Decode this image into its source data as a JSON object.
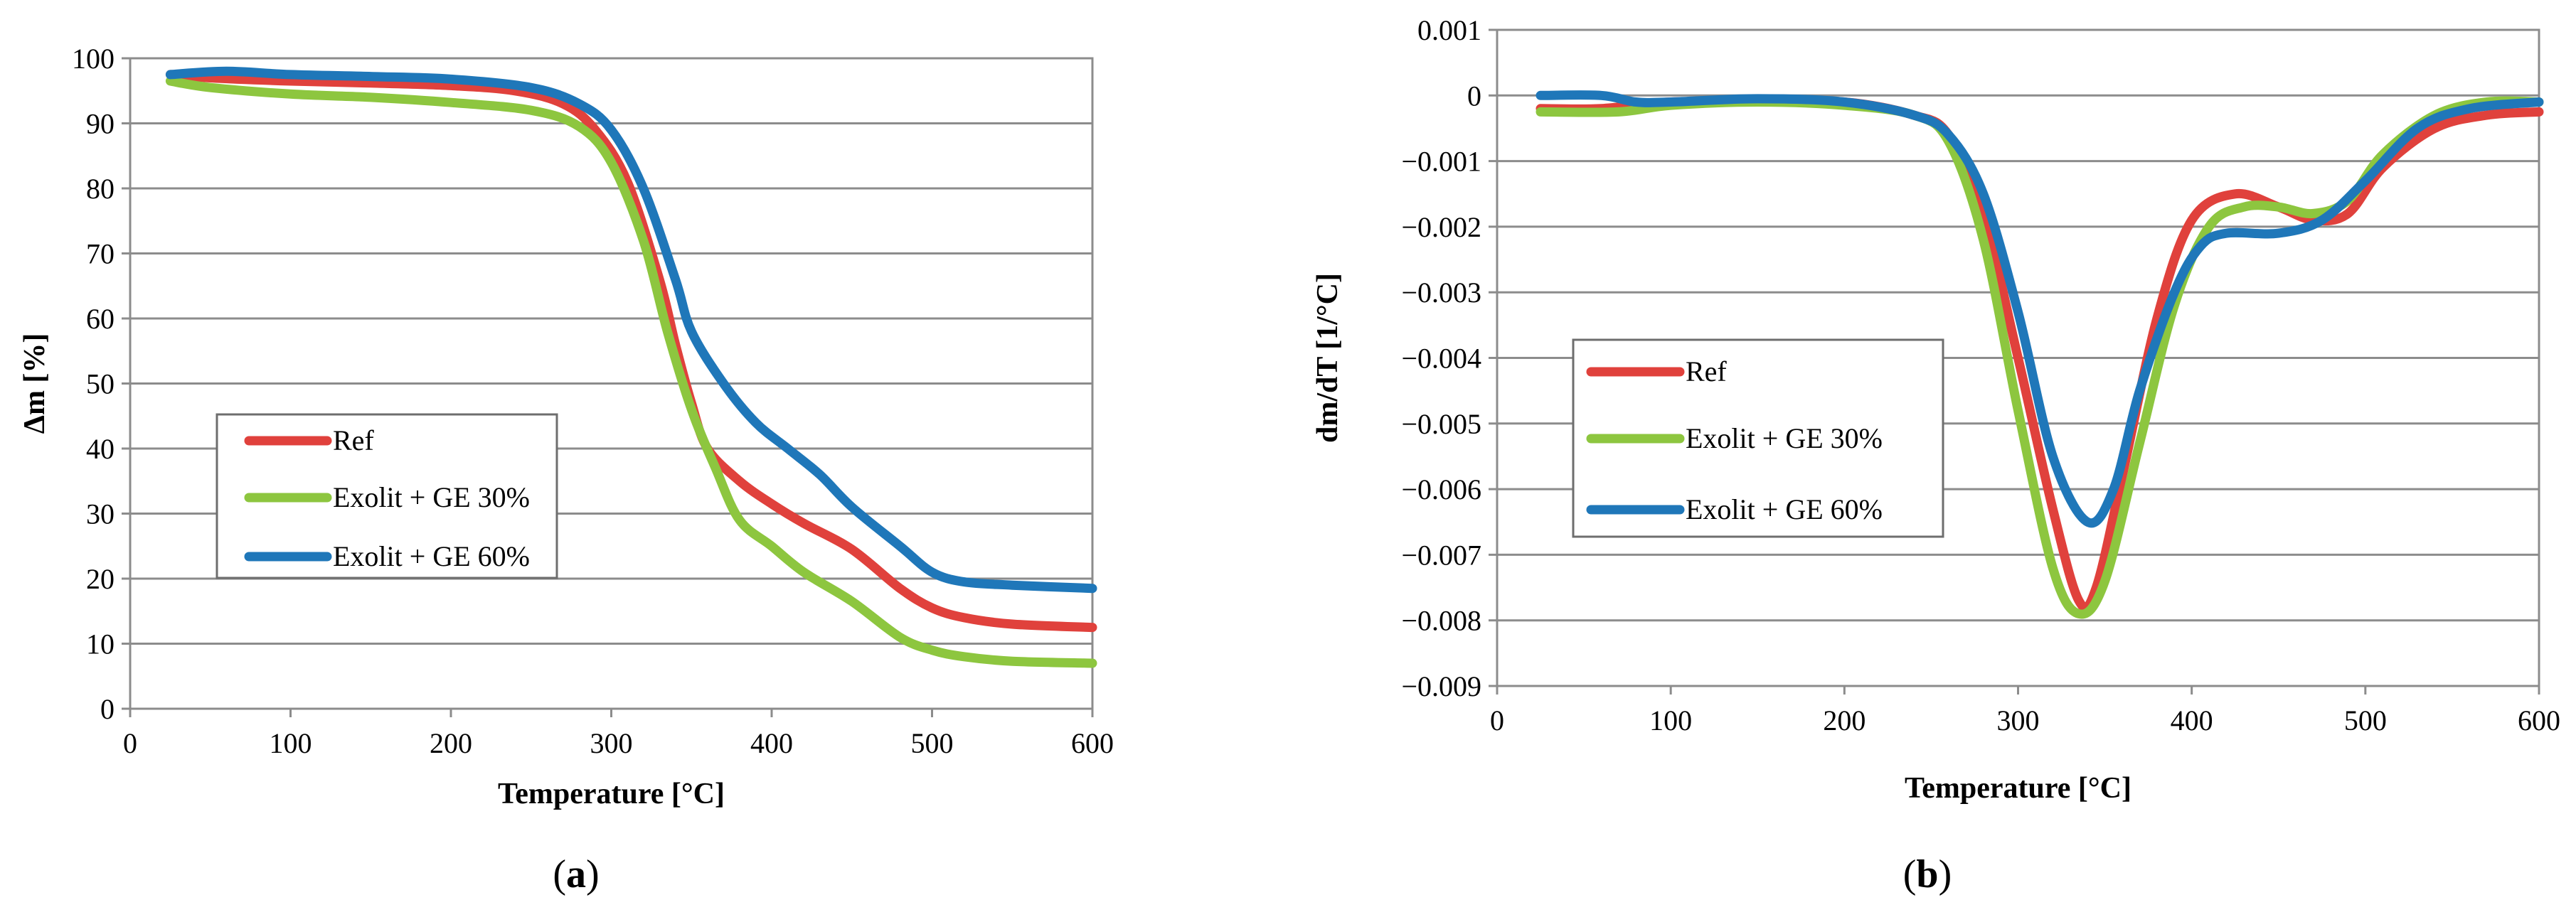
{
  "chart_data": [
    {
      "type": "line",
      "panel": "a",
      "caption": "(a)",
      "title": "",
      "xlabel": "Temperature [°C]",
      "ylabel": "Δm [%]",
      "xlim": [
        0,
        600
      ],
      "ylim": [
        0,
        100
      ],
      "x_ticks": [
        0,
        100,
        200,
        300,
        400,
        500,
        600
      ],
      "x_tick_labels": [
        "0",
        "100",
        "200",
        "300",
        "400",
        "500",
        "600"
      ],
      "y_ticks": [
        0,
        10,
        20,
        30,
        40,
        50,
        60,
        70,
        80,
        90,
        100
      ],
      "y_tick_labels": [
        "0",
        "10",
        "20",
        "30",
        "40",
        "50",
        "60",
        "70",
        "80",
        "90",
        "100"
      ],
      "grid": "horizontal",
      "legend_position": "center-left",
      "series": [
        {
          "name": "Ref",
          "color": "#E0413C",
          "points": [
            [
              25,
              97.5
            ],
            [
              50,
              97
            ],
            [
              100,
              96.5
            ],
            [
              150,
              96.2
            ],
            [
              200,
              95.8
            ],
            [
              240,
              95
            ],
            [
              270,
              93
            ],
            [
              290,
              89
            ],
            [
              310,
              81
            ],
            [
              330,
              66
            ],
            [
              340,
              56
            ],
            [
              350,
              47
            ],
            [
              360,
              40
            ],
            [
              380,
              35
            ],
            [
              400,
              31.5
            ],
            [
              420,
              28.5
            ],
            [
              450,
              24.5
            ],
            [
              480,
              18.5
            ],
            [
              500,
              15.5
            ],
            [
              520,
              14
            ],
            [
              550,
              13
            ],
            [
              600,
              12.5
            ]
          ]
        },
        {
          "name": "Exolit + GE 30%",
          "color": "#8DC63F",
          "points": [
            [
              25,
              96.5
            ],
            [
              50,
              95.5
            ],
            [
              100,
              94.5
            ],
            [
              150,
              94
            ],
            [
              200,
              93.2
            ],
            [
              250,
              92
            ],
            [
              280,
              89.5
            ],
            [
              300,
              84
            ],
            [
              320,
              72
            ],
            [
              335,
              58
            ],
            [
              350,
              46
            ],
            [
              365,
              37
            ],
            [
              380,
              29
            ],
            [
              400,
              25
            ],
            [
              420,
              21
            ],
            [
              450,
              16.5
            ],
            [
              480,
              11
            ],
            [
              500,
              9
            ],
            [
              520,
              8
            ],
            [
              550,
              7.3
            ],
            [
              600,
              7
            ]
          ]
        },
        {
          "name": "Exolit + GE 60%",
          "color": "#1F77B9",
          "points": [
            [
              25,
              97.5
            ],
            [
              60,
              98
            ],
            [
              100,
              97.5
            ],
            [
              150,
              97.2
            ],
            [
              200,
              96.8
            ],
            [
              250,
              95.5
            ],
            [
              280,
              93
            ],
            [
              300,
              89
            ],
            [
              320,
              80
            ],
            [
              340,
              66
            ],
            [
              350,
              58
            ],
            [
              370,
              50
            ],
            [
              390,
              44
            ],
            [
              410,
              40
            ],
            [
              430,
              36
            ],
            [
              450,
              31
            ],
            [
              480,
              25
            ],
            [
              500,
              21
            ],
            [
              520,
              19.5
            ],
            [
              550,
              19
            ],
            [
              600,
              18.5
            ]
          ]
        }
      ]
    },
    {
      "type": "line",
      "panel": "b",
      "caption": "(b)",
      "title": "",
      "xlabel": "Temperature [°C]",
      "ylabel": "dm/dT [1/°C]",
      "xlim": [
        0,
        600
      ],
      "ylim": [
        -0.009,
        0.001
      ],
      "x_ticks": [
        0,
        100,
        200,
        300,
        400,
        500,
        600
      ],
      "x_tick_labels": [
        "0",
        "100",
        "200",
        "300",
        "400",
        "500",
        "600"
      ],
      "y_ticks": [
        0.001,
        0,
        -0.001,
        -0.002,
        -0.003,
        -0.004,
        -0.005,
        -0.006,
        -0.007,
        -0.008,
        -0.009
      ],
      "y_tick_labels": [
        "0.001",
        "0",
        "−0.001",
        "−0.002",
        "−0.003",
        "−0.004",
        "−0.005",
        "−0.006",
        "−0.007",
        "−0.008",
        "−0.009"
      ],
      "grid": "horizontal",
      "legend_position": "center-left",
      "series": [
        {
          "name": "Ref",
          "color": "#E0413C",
          "points": [
            [
              25,
              -0.0002
            ],
            [
              60,
              -0.0002
            ],
            [
              100,
              -0.0001
            ],
            [
              150,
              -0.0001
            ],
            [
              200,
              -0.0001
            ],
            [
              240,
              -0.0003
            ],
            [
              260,
              -0.0006
            ],
            [
              280,
              -0.0018
            ],
            [
              300,
              -0.004
            ],
            [
              320,
              -0.0063
            ],
            [
              335,
              -0.0077
            ],
            [
              345,
              -0.0075
            ],
            [
              360,
              -0.0058
            ],
            [
              380,
              -0.0034
            ],
            [
              400,
              -0.0019
            ],
            [
              425,
              -0.0015
            ],
            [
              450,
              -0.0017
            ],
            [
              470,
              -0.0019
            ],
            [
              490,
              -0.0018
            ],
            [
              510,
              -0.0011
            ],
            [
              540,
              -0.0005
            ],
            [
              570,
              -0.0003
            ],
            [
              600,
              -0.00025
            ]
          ]
        },
        {
          "name": "Exolit + GE 30%",
          "color": "#8DC63F",
          "points": [
            [
              25,
              -0.00025
            ],
            [
              70,
              -0.00025
            ],
            [
              100,
              -0.00015
            ],
            [
              150,
              -0.0001
            ],
            [
              200,
              -0.00015
            ],
            [
              240,
              -0.0003
            ],
            [
              260,
              -0.0007
            ],
            [
              280,
              -0.0022
            ],
            [
              300,
              -0.0048
            ],
            [
              320,
              -0.0072
            ],
            [
              335,
              -0.0079
            ],
            [
              350,
              -0.0074
            ],
            [
              370,
              -0.0053
            ],
            [
              390,
              -0.0032
            ],
            [
              410,
              -0.002
            ],
            [
              430,
              -0.0017
            ],
            [
              450,
              -0.0017
            ],
            [
              470,
              -0.0018
            ],
            [
              490,
              -0.0016
            ],
            [
              510,
              -0.0009
            ],
            [
              540,
              -0.0003
            ],
            [
              570,
              -0.0001
            ],
            [
              600,
              -0.0001
            ]
          ]
        },
        {
          "name": "Exolit + GE 60%",
          "color": "#1F77B9",
          "points": [
            [
              25,
              0
            ],
            [
              60,
              0
            ],
            [
              80,
              -0.0001
            ],
            [
              100,
              -0.0001
            ],
            [
              150,
              -5e-05
            ],
            [
              200,
              -0.0001
            ],
            [
              240,
              -0.0003
            ],
            [
              260,
              -0.0006
            ],
            [
              280,
              -0.0015
            ],
            [
              300,
              -0.0033
            ],
            [
              320,
              -0.0055
            ],
            [
              340,
              -0.0065
            ],
            [
              355,
              -0.006
            ],
            [
              370,
              -0.0045
            ],
            [
              390,
              -0.003
            ],
            [
              405,
              -0.0023
            ],
            [
              420,
              -0.0021
            ],
            [
              450,
              -0.0021
            ],
            [
              475,
              -0.0019
            ],
            [
              500,
              -0.0013
            ],
            [
              530,
              -0.0005
            ],
            [
              560,
              -0.0002
            ],
            [
              600,
              -0.0001
            ]
          ]
        }
      ]
    }
  ]
}
